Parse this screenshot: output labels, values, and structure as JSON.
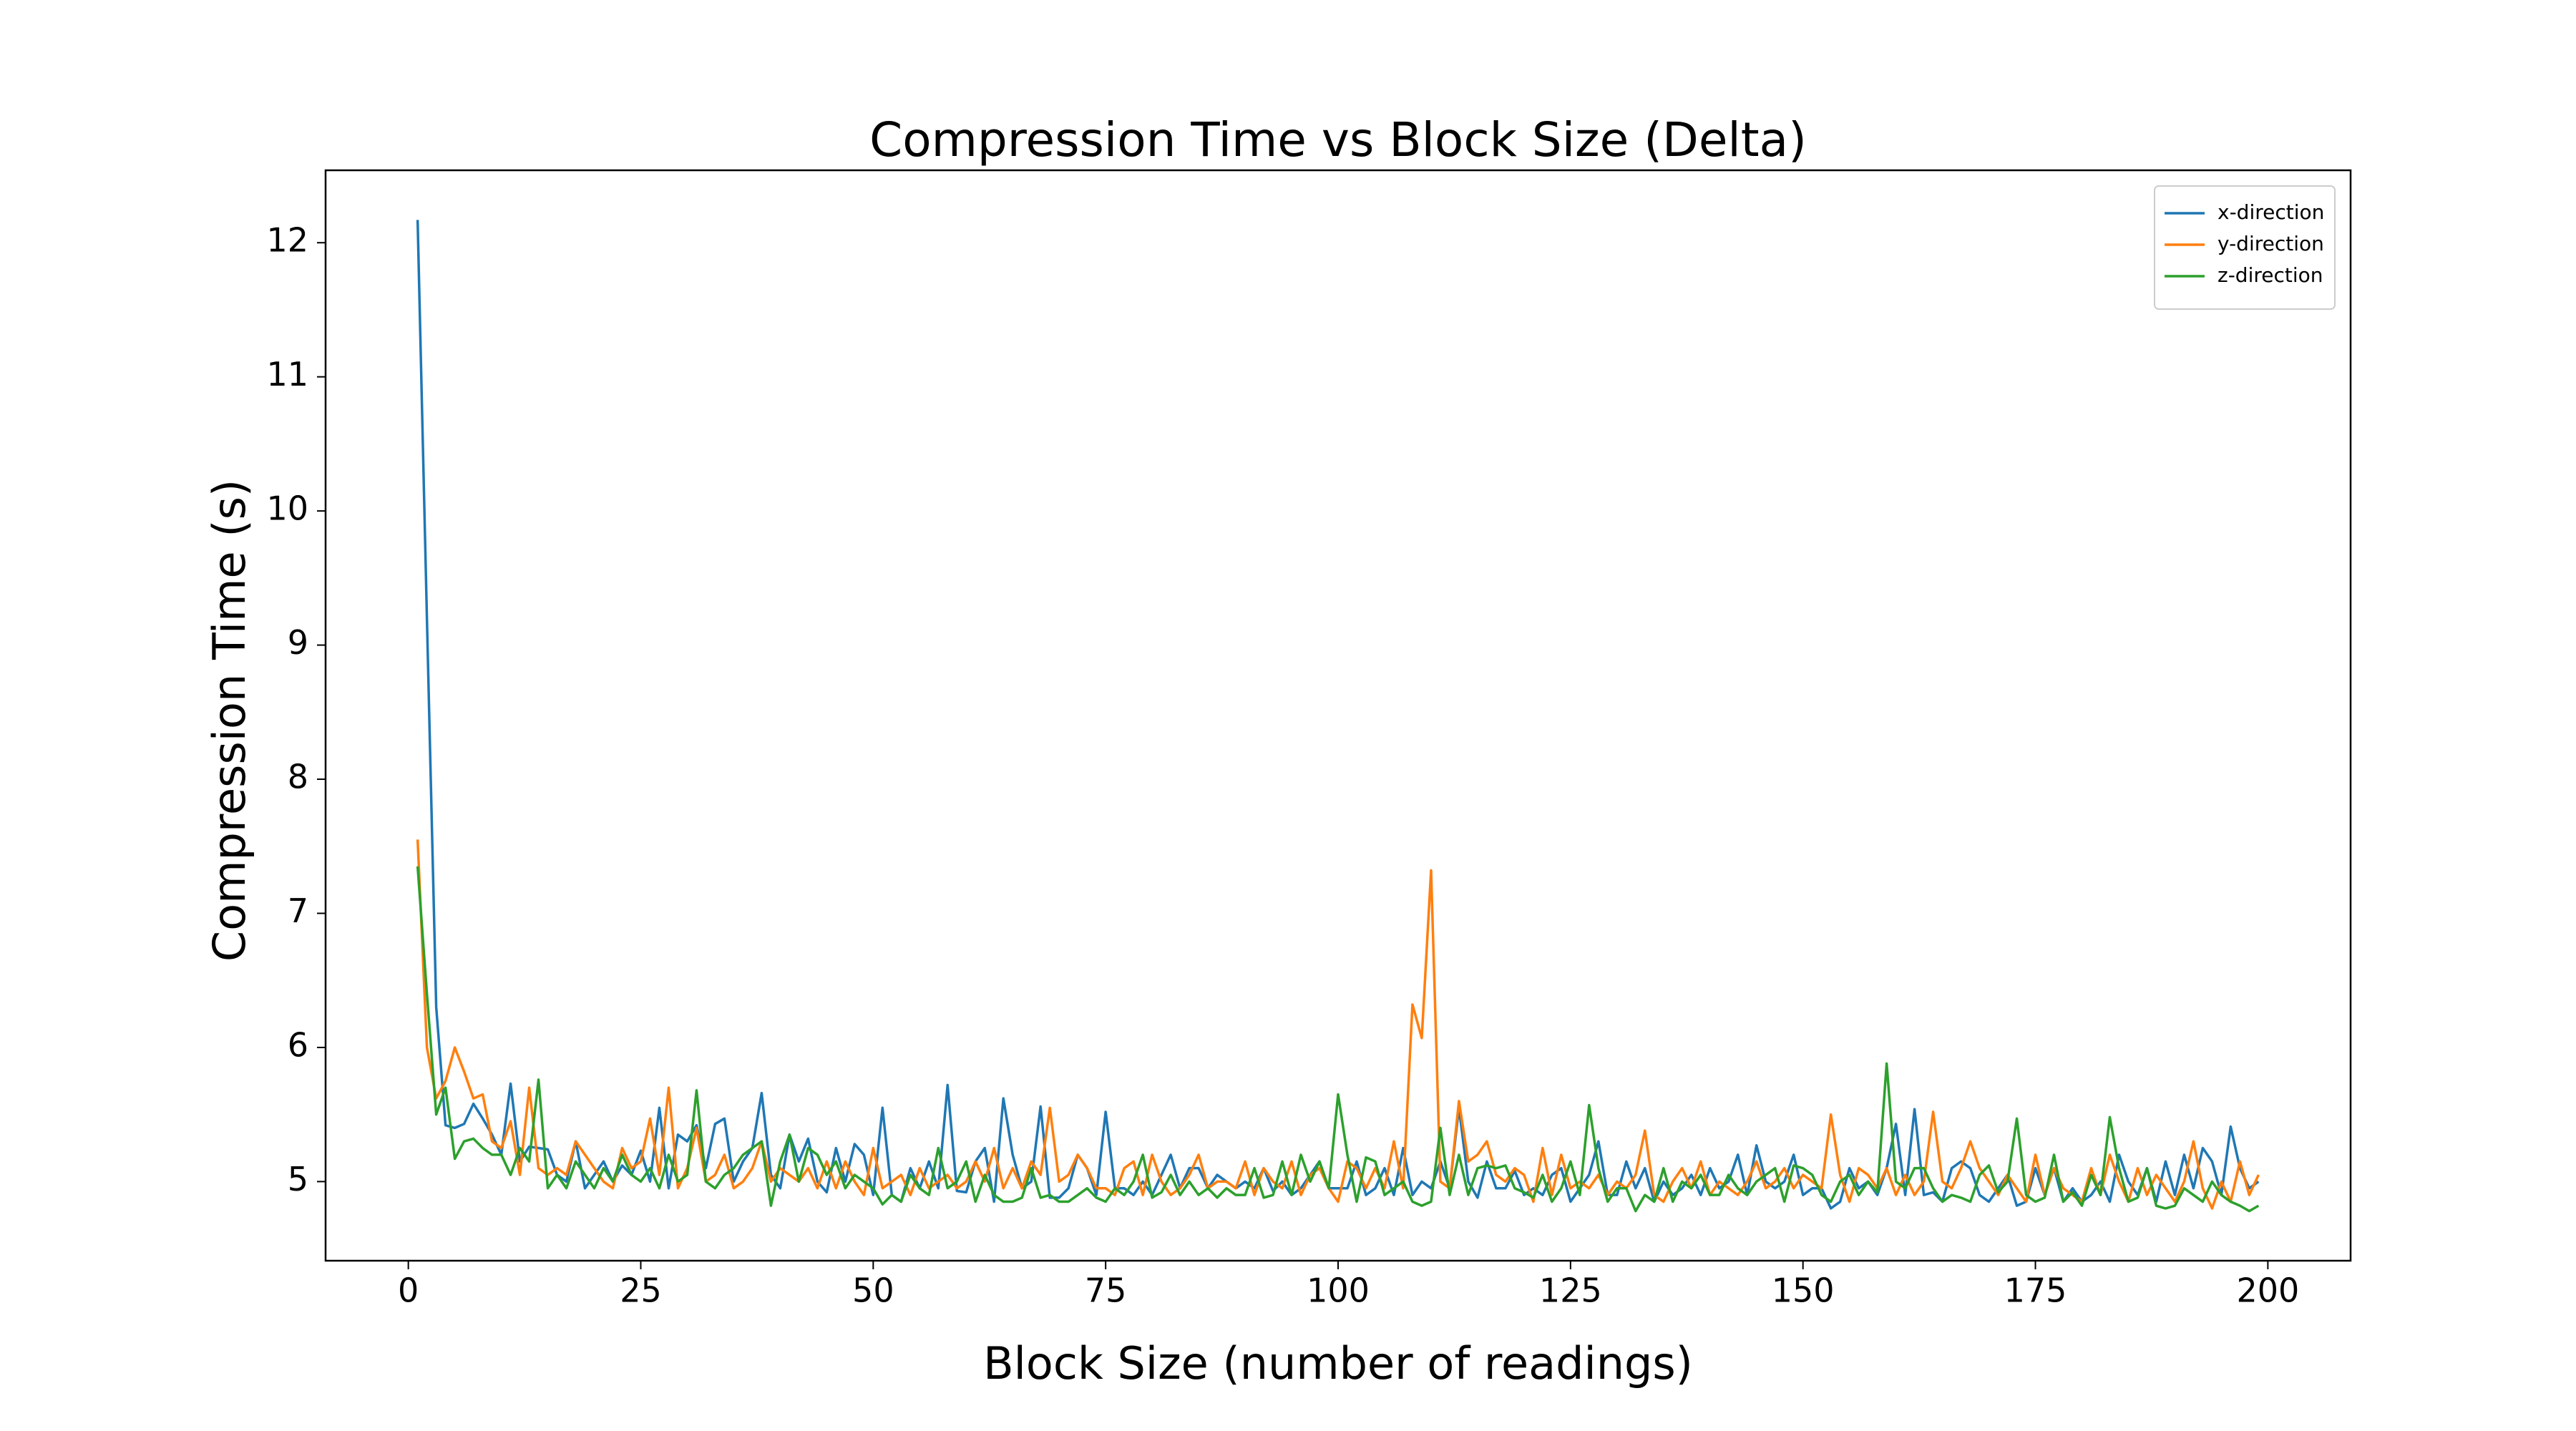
{
  "chart_data": {
    "type": "line",
    "title": "Compression Time vs Block Size (Delta)",
    "x_label": "Block Size (number of readings)",
    "y_label": "Compression Time (s)",
    "xlim": [
      -8.9,
      208.9
    ],
    "ylim": [
      4.41,
      12.54
    ],
    "xticks": [
      0,
      25,
      50,
      75,
      100,
      125,
      150,
      175,
      200
    ],
    "yticks": [
      5,
      6,
      7,
      8,
      9,
      10,
      11,
      12
    ],
    "legend": "upper right",
    "grid": false,
    "x": [
      1,
      2,
      3,
      4,
      5,
      6,
      7,
      8,
      9,
      10,
      11,
      12,
      13,
      14,
      15,
      16,
      17,
      18,
      19,
      20,
      21,
      22,
      23,
      24,
      25,
      26,
      27,
      28,
      29,
      30,
      31,
      32,
      33,
      34,
      35,
      36,
      37,
      38,
      39,
      40,
      41,
      42,
      43,
      44,
      45,
      46,
      47,
      48,
      49,
      50,
      51,
      52,
      53,
      54,
      55,
      56,
      57,
      58,
      59,
      60,
      61,
      62,
      63,
      64,
      65,
      66,
      67,
      68,
      69,
      70,
      71,
      72,
      73,
      74,
      75,
      76,
      77,
      78,
      79,
      80,
      81,
      82,
      83,
      84,
      85,
      86,
      87,
      88,
      89,
      90,
      91,
      92,
      93,
      94,
      95,
      96,
      97,
      98,
      99,
      100,
      101,
      102,
      103,
      104,
      105,
      106,
      107,
      108,
      109,
      110,
      111,
      112,
      113,
      114,
      115,
      116,
      117,
      118,
      119,
      120,
      121,
      122,
      123,
      124,
      125,
      126,
      127,
      128,
      129,
      130,
      131,
      132,
      133,
      134,
      135,
      136,
      137,
      138,
      139,
      140,
      141,
      142,
      143,
      144,
      145,
      146,
      147,
      148,
      149,
      150,
      151,
      152,
      153,
      154,
      155,
      156,
      157,
      158,
      159,
      160,
      161,
      162,
      163,
      164,
      165,
      166,
      167,
      168,
      169,
      170,
      171,
      172,
      173,
      174,
      175,
      176,
      177,
      178,
      179,
      180,
      181,
      182,
      183,
      184,
      185,
      186,
      187,
      188,
      189,
      190,
      191,
      192,
      193,
      194,
      195,
      196,
      197,
      198,
      199
    ],
    "series": [
      {
        "name": "x-direction",
        "color": "#1f77b4",
        "values": [
          12.17,
          9.2,
          6.3,
          5.42,
          5.4,
          5.43,
          5.58,
          5.47,
          5.35,
          5.2,
          5.73,
          5.15,
          5.26,
          5.25,
          5.24,
          5.05,
          5.0,
          5.3,
          4.95,
          5.05,
          5.15,
          5.0,
          5.12,
          5.05,
          5.23,
          5.0,
          5.55,
          4.95,
          5.35,
          5.3,
          5.42,
          5.1,
          5.43,
          5.47,
          5.0,
          5.15,
          5.25,
          5.66,
          5.05,
          4.95,
          5.35,
          5.15,
          5.32,
          5.0,
          4.92,
          5.25,
          5.0,
          5.28,
          5.2,
          4.9,
          5.55,
          4.9,
          4.85,
          5.1,
          4.95,
          5.15,
          4.95,
          5.72,
          4.93,
          4.92,
          5.15,
          5.25,
          4.85,
          5.62,
          5.2,
          4.95,
          5.0,
          5.56,
          4.88,
          4.88,
          4.95,
          5.2,
          5.1,
          4.9,
          5.52,
          4.95,
          4.95,
          4.9,
          5.0,
          4.9,
          5.05,
          5.2,
          4.95,
          5.1,
          5.1,
          4.95,
          5.05,
          5.0,
          4.95,
          5.0,
          4.95,
          5.1,
          4.93,
          5.0,
          4.9,
          4.95,
          5.05,
          5.15,
          4.95,
          4.95,
          4.95,
          5.15,
          4.9,
          4.95,
          5.1,
          4.9,
          5.25,
          4.9,
          5.0,
          4.95,
          5.15,
          4.95,
          5.55,
          5.0,
          4.88,
          5.15,
          4.95,
          4.95,
          5.08,
          4.9,
          4.95,
          4.9,
          5.05,
          5.1,
          4.85,
          4.95,
          5.05,
          5.3,
          4.9,
          4.9,
          5.15,
          4.95,
          5.1,
          4.85,
          5.0,
          4.9,
          4.95,
          5.05,
          4.9,
          5.1,
          4.95,
          5.0,
          5.2,
          4.9,
          5.27,
          5.0,
          4.95,
          5.0,
          5.2,
          4.9,
          4.95,
          4.95,
          4.8,
          4.85,
          5.1,
          4.95,
          5.0,
          4.9,
          5.1,
          5.43,
          4.9,
          5.54,
          4.9,
          4.92,
          4.85,
          5.1,
          5.15,
          5.1,
          4.9,
          4.85,
          4.95,
          5.05,
          4.82,
          4.85,
          5.1,
          4.9,
          5.1,
          4.85,
          4.95,
          4.85,
          4.9,
          5.0,
          4.85,
          5.2,
          5.0,
          4.9,
          5.1,
          4.85,
          5.15,
          4.9,
          5.2,
          4.95,
          5.25,
          5.15,
          4.9,
          5.41,
          5.1,
          4.95,
          5.0
        ]
      },
      {
        "name": "y-direction",
        "color": "#ff7f0e",
        "values": [
          7.55,
          6.0,
          5.62,
          5.75,
          6.0,
          5.82,
          5.62,
          5.65,
          5.3,
          5.25,
          5.45,
          5.05,
          5.7,
          5.1,
          5.05,
          5.1,
          5.05,
          5.3,
          5.2,
          5.1,
          5.0,
          4.95,
          5.25,
          5.1,
          5.15,
          5.47,
          5.05,
          5.7,
          4.95,
          5.1,
          5.4,
          5.0,
          5.05,
          5.2,
          4.95,
          5.0,
          5.1,
          5.3,
          5.0,
          5.1,
          5.05,
          5.0,
          5.1,
          4.95,
          5.15,
          4.95,
          5.15,
          5.0,
          4.9,
          5.25,
          4.95,
          5.0,
          5.05,
          4.9,
          5.1,
          4.95,
          5.0,
          5.05,
          4.95,
          5.0,
          5.15,
          5.0,
          5.25,
          4.95,
          5.1,
          4.95,
          5.15,
          5.05,
          5.55,
          5.0,
          5.05,
          5.2,
          5.1,
          4.95,
          4.95,
          4.9,
          5.1,
          5.15,
          4.9,
          5.2,
          5.0,
          4.9,
          4.95,
          5.05,
          5.2,
          4.95,
          5.0,
          5.0,
          4.95,
          5.15,
          4.9,
          5.1,
          5.0,
          4.95,
          5.15,
          4.9,
          5.05,
          5.1,
          4.95,
          4.85,
          5.15,
          5.1,
          4.95,
          5.1,
          4.95,
          5.3,
          4.95,
          6.32,
          6.07,
          7.32,
          5.0,
          4.95,
          5.6,
          5.15,
          5.2,
          5.3,
          5.05,
          5.0,
          5.1,
          5.05,
          4.85,
          5.25,
          4.9,
          5.2,
          4.95,
          5.0,
          4.95,
          5.05,
          4.9,
          5.0,
          4.95,
          5.05,
          5.38,
          4.9,
          4.85,
          5.0,
          5.1,
          4.95,
          5.15,
          4.9,
          5.0,
          4.95,
          4.9,
          5.0,
          5.15,
          4.95,
          5.0,
          5.1,
          4.95,
          5.05,
          5.0,
          4.95,
          5.5,
          5.05,
          4.85,
          5.1,
          5.05,
          4.95,
          5.1,
          4.9,
          5.05,
          4.9,
          5.0,
          5.52,
          5.0,
          4.95,
          5.1,
          5.3,
          5.1,
          5.0,
          4.9,
          5.05,
          4.95,
          4.85,
          5.2,
          4.9,
          5.1,
          4.95,
          4.9,
          4.85,
          5.1,
          4.9,
          5.2,
          5.0,
          4.85,
          5.1,
          4.9,
          5.05,
          4.95,
          4.85,
          5.0,
          5.3,
          4.95,
          4.8,
          5.0,
          4.85,
          5.15,
          4.9,
          5.05
        ]
      },
      {
        "name": "z-direction",
        "color": "#2ca02c",
        "values": [
          7.35,
          6.4,
          5.5,
          5.7,
          5.17,
          5.3,
          5.32,
          5.25,
          5.2,
          5.2,
          5.05,
          5.25,
          5.15,
          5.76,
          4.95,
          5.05,
          4.95,
          5.15,
          5.05,
          4.95,
          5.1,
          5.0,
          5.2,
          5.05,
          5.0,
          5.1,
          4.95,
          5.2,
          5.0,
          5.05,
          5.68,
          5.0,
          4.95,
          5.05,
          5.1,
          5.2,
          5.25,
          5.3,
          4.82,
          5.15,
          5.35,
          5.0,
          5.25,
          5.2,
          5.05,
          5.15,
          4.95,
          5.05,
          5.0,
          4.95,
          4.83,
          4.9,
          4.85,
          5.05,
          4.95,
          4.9,
          5.25,
          4.95,
          5.0,
          5.15,
          4.85,
          5.05,
          4.9,
          4.85,
          4.85,
          4.88,
          5.1,
          4.88,
          4.9,
          4.85,
          4.85,
          4.9,
          4.95,
          4.88,
          4.85,
          4.95,
          4.9,
          5.0,
          5.2,
          4.88,
          4.92,
          5.05,
          4.9,
          5.0,
          4.9,
          4.95,
          4.88,
          4.95,
          4.9,
          4.9,
          5.1,
          4.88,
          4.9,
          5.15,
          4.9,
          5.2,
          5.0,
          5.15,
          4.95,
          5.65,
          5.2,
          4.85,
          5.18,
          5.15,
          4.9,
          4.95,
          5.0,
          4.85,
          4.82,
          4.85,
          5.4,
          4.9,
          5.2,
          4.9,
          5.1,
          5.12,
          5.1,
          5.12,
          4.95,
          4.92,
          4.88,
          5.05,
          4.85,
          4.95,
          5.15,
          4.9,
          5.57,
          5.1,
          4.85,
          4.95,
          4.95,
          4.78,
          4.9,
          4.85,
          5.1,
          4.85,
          5.0,
          4.95,
          5.05,
          4.9,
          4.9,
          5.05,
          4.95,
          4.9,
          5.0,
          5.05,
          5.1,
          4.85,
          5.12,
          5.1,
          5.05,
          4.9,
          4.85,
          5.0,
          5.05,
          4.9,
          5.0,
          4.92,
          5.88,
          5.0,
          4.95,
          5.1,
          5.1,
          4.95,
          4.85,
          4.9,
          4.88,
          4.85,
          5.05,
          5.12,
          4.92,
          5.0,
          5.47,
          4.9,
          4.85,
          4.88,
          5.2,
          4.85,
          4.92,
          4.82,
          5.05,
          4.9,
          5.48,
          5.1,
          4.85,
          4.88,
          5.1,
          4.82,
          4.8,
          4.82,
          4.95,
          4.9,
          4.85,
          5.0,
          4.9,
          4.85,
          4.82,
          4.78,
          4.82
        ]
      }
    ]
  }
}
